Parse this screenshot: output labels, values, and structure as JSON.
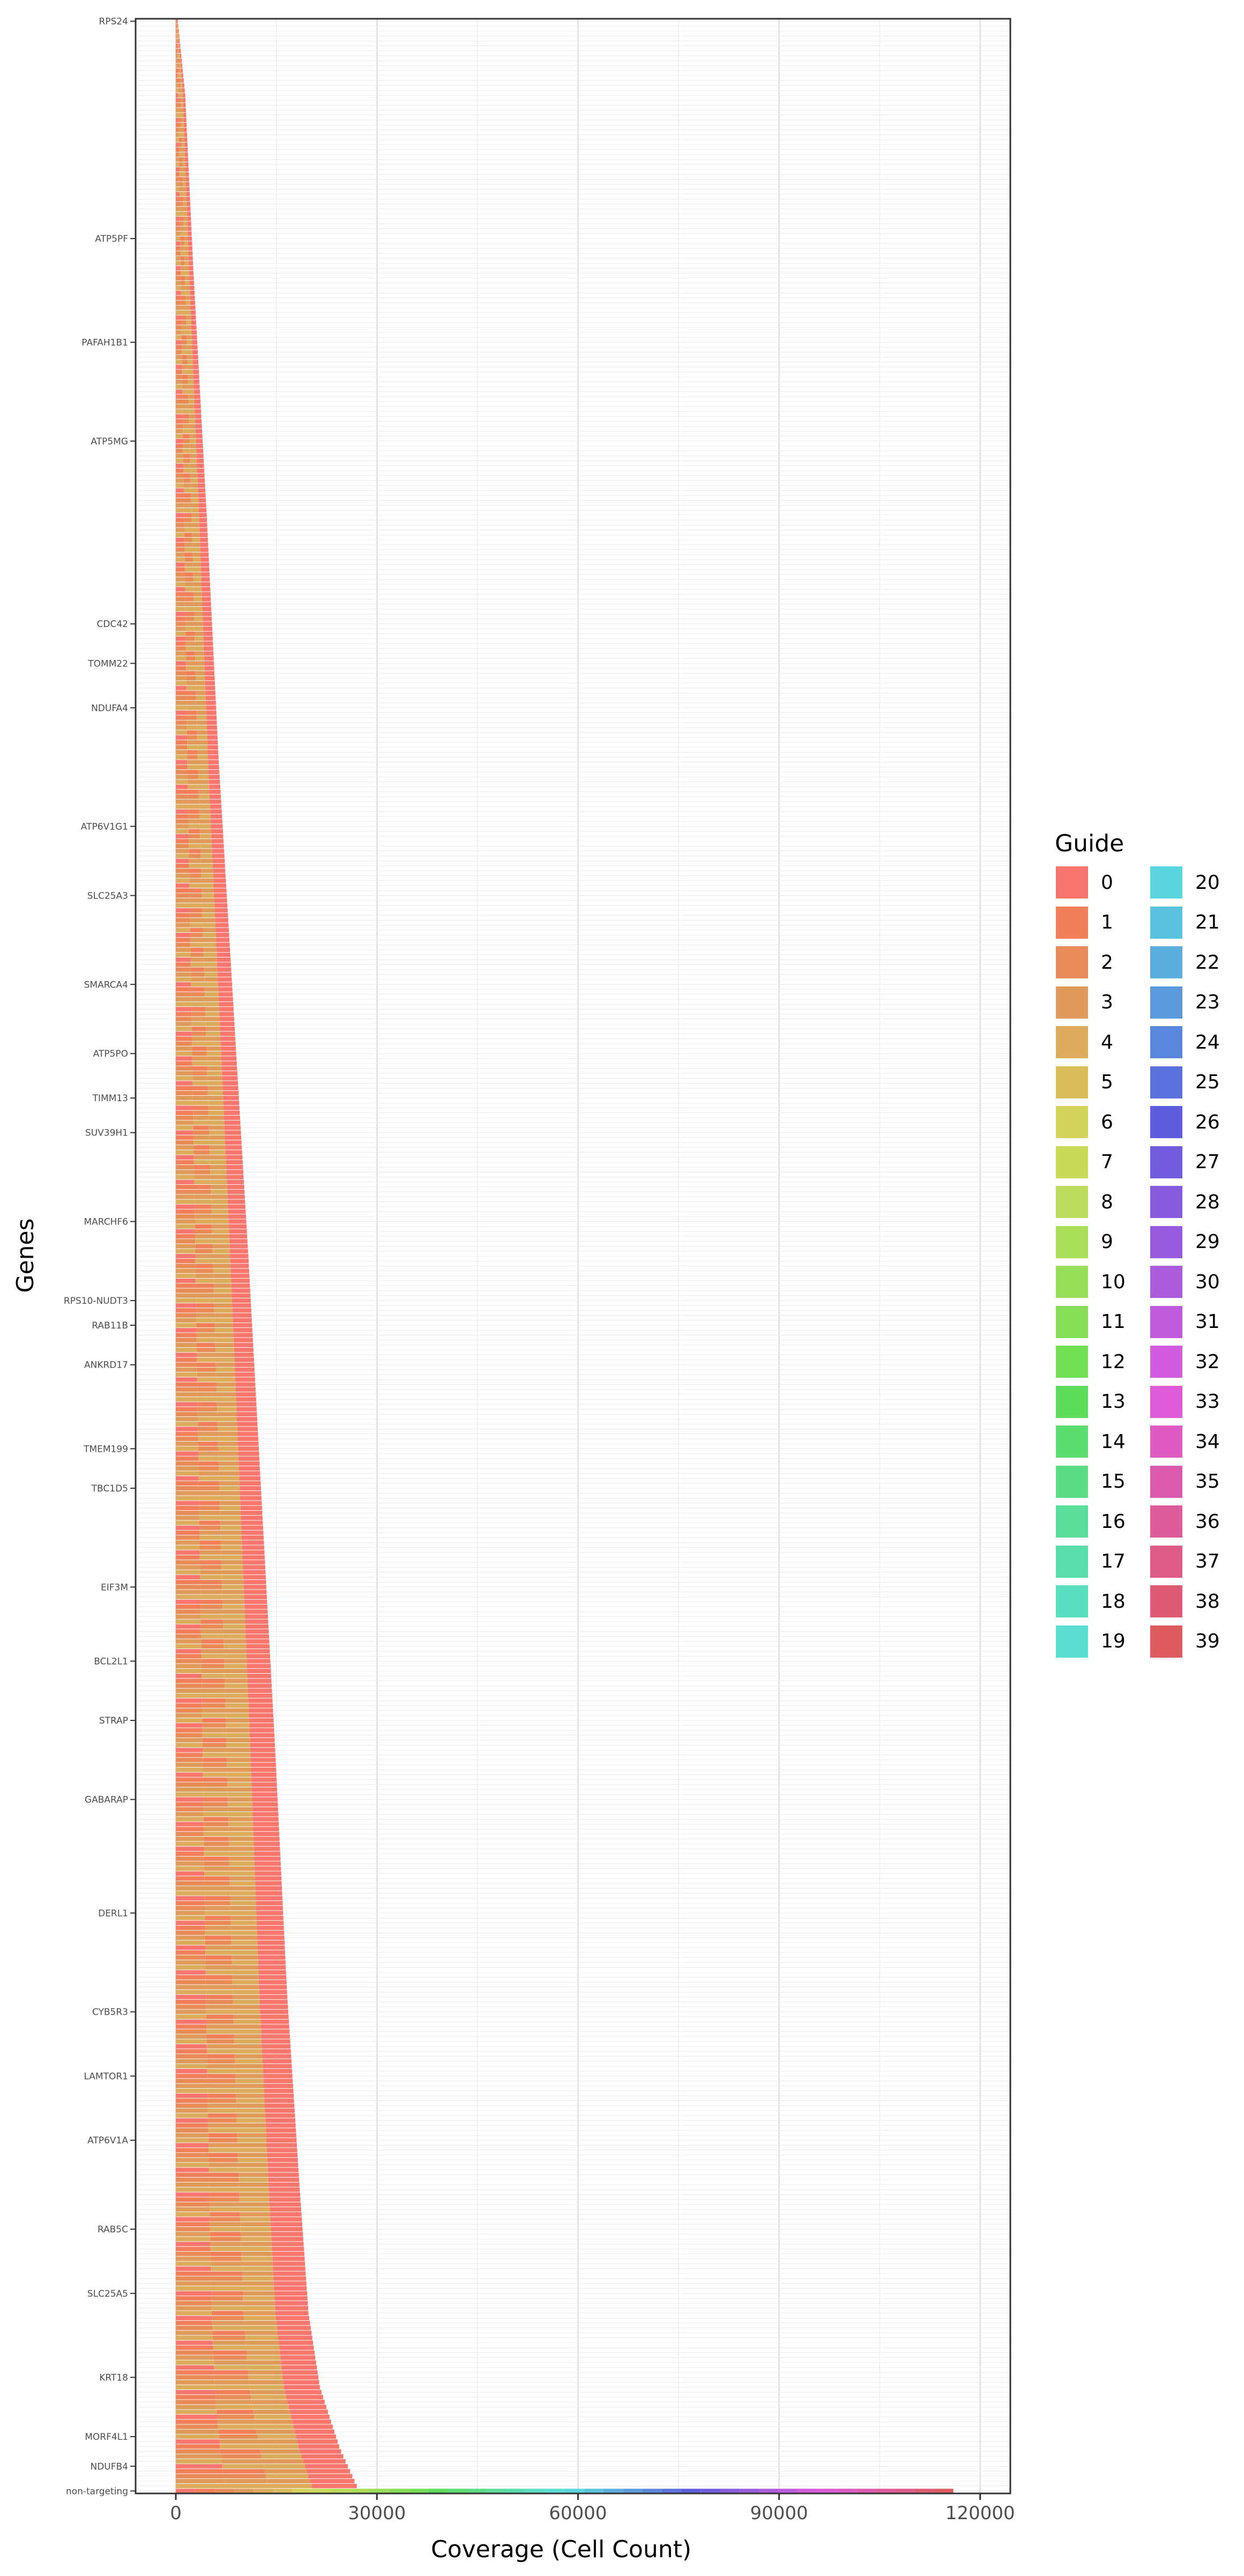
{
  "chart_data": {
    "type": "bar",
    "orientation": "horizontal",
    "stacked": true,
    "xlabel": "Coverage (Cell Count)",
    "ylabel": "Genes",
    "xlim": [
      -6000,
      124500
    ],
    "x_ticks": [
      0,
      30000,
      60000,
      90000,
      120000
    ],
    "x_tick_labels": [
      "0",
      "30000",
      "60000",
      "90000",
      "120000"
    ],
    "grid": true,
    "legend_position": "right",
    "legend": {
      "title": "Guide",
      "entries": [
        {
          "label": "0",
          "color": "#F8766D"
        },
        {
          "label": "1",
          "color": "#F07F5A"
        },
        {
          "label": "2",
          "color": "#E88B57"
        },
        {
          "label": "3",
          "color": "#E09A5A"
        },
        {
          "label": "4",
          "color": "#DDAB5C"
        },
        {
          "label": "5",
          "color": "#DABD5B"
        },
        {
          "label": "6",
          "color": "#D4D45D"
        },
        {
          "label": "7",
          "color": "#C9D95A"
        },
        {
          "label": "8",
          "color": "#BADB5C"
        },
        {
          "label": "9",
          "color": "#AADD58"
        },
        {
          "label": "10",
          "color": "#98DE58"
        },
        {
          "label": "11",
          "color": "#85DE55"
        },
        {
          "label": "12",
          "color": "#72E055"
        },
        {
          "label": "13",
          "color": "#5DDD5A"
        },
        {
          "label": "14",
          "color": "#5CDD70"
        },
        {
          "label": "15",
          "color": "#5CDD85"
        },
        {
          "label": "16",
          "color": "#5BDD99"
        },
        {
          "label": "17",
          "color": "#5ADDAC"
        },
        {
          "label": "18",
          "color": "#5BDDC0"
        },
        {
          "label": "19",
          "color": "#5BDDD2"
        },
        {
          "label": "20",
          "color": "#5BD5DD"
        },
        {
          "label": "21",
          "color": "#5BC2DD"
        },
        {
          "label": "22",
          "color": "#5BAEDD"
        },
        {
          "label": "23",
          "color": "#5B9ADD"
        },
        {
          "label": "24",
          "color": "#5B86DD"
        },
        {
          "label": "25",
          "color": "#5B72DD"
        },
        {
          "label": "26",
          "color": "#5E5DDD"
        },
        {
          "label": "27",
          "color": "#725BDD"
        },
        {
          "label": "28",
          "color": "#865BDD"
        },
        {
          "label": "29",
          "color": "#995BDD"
        },
        {
          "label": "30",
          "color": "#AD5BDD"
        },
        {
          "label": "31",
          "color": "#C05BDD"
        },
        {
          "label": "32",
          "color": "#D35BDD"
        },
        {
          "label": "33",
          "color": "#DD5BD6"
        },
        {
          "label": "34",
          "color": "#DD5BC2"
        },
        {
          "label": "35",
          "color": "#DD5BAE"
        },
        {
          "label": "36",
          "color": "#DD5B9A"
        },
        {
          "label": "37",
          "color": "#DD5B86"
        },
        {
          "label": "38",
          "color": "#DD5B72"
        },
        {
          "label": "39",
          "color": "#DD5B5E"
        }
      ]
    },
    "gene_labels_legible": [
      {
        "label": "RPS24",
        "value": 300
      },
      {
        "label": "ATP5PF",
        "value": 2400
      },
      {
        "label": "PAFAH1B1",
        "value": 3200
      },
      {
        "label": "ATP5MG",
        "value": 4000
      },
      {
        "label": "CDC42",
        "value": 5400
      },
      {
        "label": "TOMM22",
        "value": 5700
      },
      {
        "label": "NDUFA4",
        "value": 6000
      },
      {
        "label": "ATP6V1G1",
        "value": 7000
      },
      {
        "label": "SLC25A3",
        "value": 7600
      },
      {
        "label": "SMARCA4",
        "value": 8400
      },
      {
        "label": "ATP5PO",
        "value": 9000
      },
      {
        "label": "TIMM13",
        "value": 9400
      },
      {
        "label": "SUV39H1",
        "value": 9700
      },
      {
        "label": "MARCHF6",
        "value": 10500
      },
      {
        "label": "RPS10-NUDT3",
        "value": 11200
      },
      {
        "label": "RAB11B",
        "value": 11400
      },
      {
        "label": "ANKRD17",
        "value": 11700
      },
      {
        "label": "TMEM199",
        "value": 12400
      },
      {
        "label": "TBC1D5",
        "value": 12700
      },
      {
        "label": "EIF3M",
        "value": 13500
      },
      {
        "label": "BCL2L1",
        "value": 14100
      },
      {
        "label": "STRAP",
        "value": 14600
      },
      {
        "label": "GABARAP",
        "value": 15200
      },
      {
        "label": "DERL1",
        "value": 16000
      },
      {
        "label": "CYB5R3",
        "value": 16800
      },
      {
        "label": "LAMTOR1",
        "value": 17400
      },
      {
        "label": "ATP6V1A",
        "value": 18000
      },
      {
        "label": "RAB5C",
        "value": 18900
      },
      {
        "label": "SLC25A5",
        "value": 19600
      },
      {
        "label": "KRT18",
        "value": 21300
      },
      {
        "label": "MORF4L1",
        "value": 24000
      },
      {
        "label": "NDUFB4",
        "value": 25500
      },
      {
        "label": "non-targeting",
        "value": 116000
      }
    ],
    "n_gene_rows": 500,
    "distribution_note": "",
    "gene_coverage_breakpoints": [
      {
        "rank_fraction": 0.0,
        "value": 300
      },
      {
        "rank_fraction": 0.03,
        "value": 1400
      },
      {
        "rank_fraction": 0.1,
        "value": 2600
      },
      {
        "rank_fraction": 0.2,
        "value": 4600
      },
      {
        "rank_fraction": 0.3,
        "value": 6400
      },
      {
        "rank_fraction": 0.4,
        "value": 8600
      },
      {
        "rank_fraction": 0.5,
        "value": 10800
      },
      {
        "rank_fraction": 0.6,
        "value": 12800
      },
      {
        "rank_fraction": 0.7,
        "value": 14800
      },
      {
        "rank_fraction": 0.8,
        "value": 16600
      },
      {
        "rank_fraction": 0.88,
        "value": 18500
      },
      {
        "rank_fraction": 0.93,
        "value": 19800
      },
      {
        "rank_fraction": 0.96,
        "value": 21500
      },
      {
        "rank_fraction": 0.985,
        "value": 24500
      },
      {
        "rank_fraction": 1.0,
        "value": 27000
      }
    ]
  }
}
